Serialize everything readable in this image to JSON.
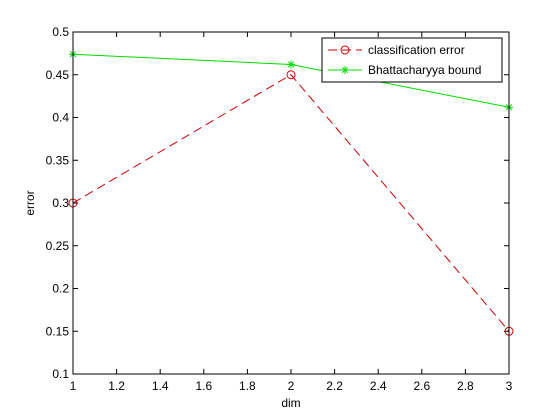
{
  "chart_data": {
    "type": "line",
    "title": "",
    "xlabel": "dim",
    "ylabel": "error",
    "xlim": [
      1,
      3
    ],
    "ylim": [
      0.1,
      0.5
    ],
    "xticks": [
      1,
      1.2,
      1.4,
      1.6,
      1.8,
      2,
      2.2,
      2.4,
      2.6,
      2.8,
      3
    ],
    "xtick_labels": [
      "1",
      "1.2",
      "1.4",
      "1.6",
      "1.8",
      "2",
      "2.2",
      "2.4",
      "2.6",
      "2.8",
      "3"
    ],
    "yticks": [
      0.1,
      0.15,
      0.2,
      0.25,
      0.3,
      0.35,
      0.4,
      0.45,
      0.5
    ],
    "ytick_labels": [
      "0.1",
      "0.15",
      "0.2",
      "0.25",
      "0.3",
      "0.35",
      "0.4",
      "0.45",
      "0.5"
    ],
    "grid": false,
    "legend_position": "top-right",
    "x": [
      1,
      2,
      3
    ],
    "series": [
      {
        "name": "classification error",
        "values": [
          0.3,
          0.45,
          0.15
        ],
        "color": "#cc0000",
        "line_style": "dashed",
        "marker": "circle"
      },
      {
        "name": "Bhattacharyya bound",
        "values": [
          0.474,
          0.462,
          0.412
        ],
        "color": "#00dd00",
        "line_style": "solid",
        "marker": "star"
      }
    ]
  }
}
